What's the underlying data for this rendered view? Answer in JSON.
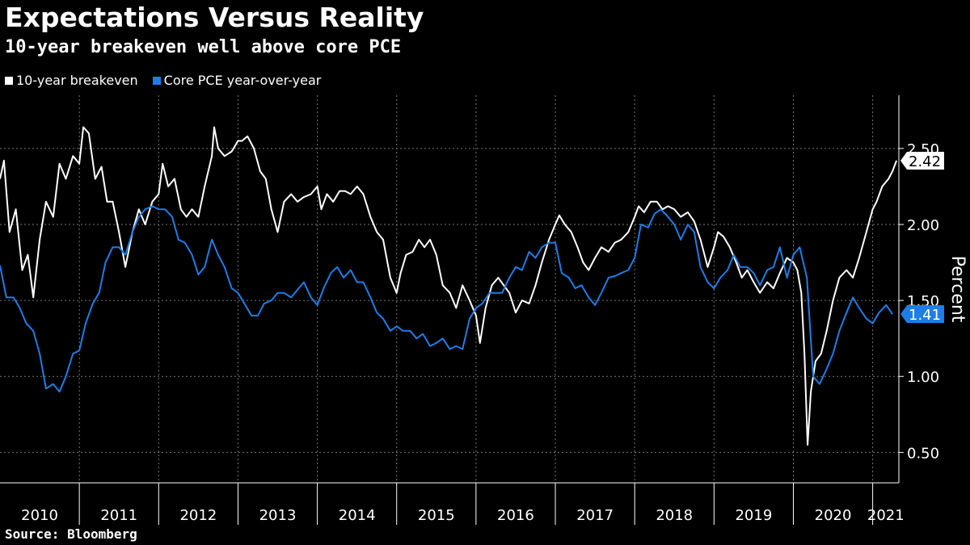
{
  "header": {
    "title": "Expectations Versus Reality",
    "subtitle": "10-year breakeven well above core PCE"
  },
  "footer": {
    "source": "Source: Bloomberg"
  },
  "colors": {
    "breakeven": "#ffffff",
    "pce": "#1f7de6",
    "grid": "#777777",
    "background": "#000000"
  },
  "chart_data": {
    "type": "line",
    "title": "Expectations Versus Reality",
    "subtitle": "10-year breakeven well above core PCE",
    "ylabel": "Percent",
    "ylim": [
      0.3,
      2.85
    ],
    "yticks": [
      0.5,
      1.0,
      1.5,
      2.0,
      2.5
    ],
    "ytick_labels": [
      "0.50",
      "1.00",
      "1.50",
      "2.00",
      "2.50"
    ],
    "xlim": [
      2010.0,
      2021.33
    ],
    "xtick_labels": [
      "2010",
      "2011",
      "2012",
      "2013",
      "2014",
      "2015",
      "2016",
      "2017",
      "2018",
      "2019",
      "2020",
      "2021"
    ],
    "legend_position": "top-left",
    "grid": true,
    "series": [
      {
        "name": "10-year breakeven",
        "color": "#ffffff",
        "last_value_label": "2.42",
        "points": [
          [
            2010.0,
            2.3
          ],
          [
            2010.05,
            2.42
          ],
          [
            2010.12,
            1.95
          ],
          [
            2010.2,
            2.1
          ],
          [
            2010.28,
            1.7
          ],
          [
            2010.35,
            1.8
          ],
          [
            2010.42,
            1.52
          ],
          [
            2010.5,
            1.9
          ],
          [
            2010.58,
            2.15
          ],
          [
            2010.67,
            2.05
          ],
          [
            2010.75,
            2.4
          ],
          [
            2010.83,
            2.3
          ],
          [
            2010.92,
            2.45
          ],
          [
            2011.0,
            2.4
          ],
          [
            2011.05,
            2.64
          ],
          [
            2011.12,
            2.6
          ],
          [
            2011.2,
            2.3
          ],
          [
            2011.28,
            2.38
          ],
          [
            2011.35,
            2.15
          ],
          [
            2011.42,
            2.15
          ],
          [
            2011.5,
            1.95
          ],
          [
            2011.58,
            1.72
          ],
          [
            2011.67,
            1.95
          ],
          [
            2011.75,
            2.1
          ],
          [
            2011.83,
            2.0
          ],
          [
            2011.92,
            2.15
          ],
          [
            2012.0,
            2.2
          ],
          [
            2012.05,
            2.4
          ],
          [
            2012.12,
            2.25
          ],
          [
            2012.2,
            2.3
          ],
          [
            2012.28,
            2.1
          ],
          [
            2012.35,
            2.05
          ],
          [
            2012.42,
            2.1
          ],
          [
            2012.5,
            2.05
          ],
          [
            2012.58,
            2.25
          ],
          [
            2012.67,
            2.45
          ],
          [
            2012.7,
            2.64
          ],
          [
            2012.75,
            2.5
          ],
          [
            2012.83,
            2.45
          ],
          [
            2012.92,
            2.48
          ],
          [
            2013.0,
            2.55
          ],
          [
            2013.05,
            2.55
          ],
          [
            2013.12,
            2.58
          ],
          [
            2013.2,
            2.5
          ],
          [
            2013.28,
            2.35
          ],
          [
            2013.35,
            2.3
          ],
          [
            2013.42,
            2.1
          ],
          [
            2013.5,
            1.95
          ],
          [
            2013.58,
            2.15
          ],
          [
            2013.67,
            2.2
          ],
          [
            2013.75,
            2.15
          ],
          [
            2013.83,
            2.18
          ],
          [
            2013.92,
            2.2
          ],
          [
            2014.0,
            2.25
          ],
          [
            2014.05,
            2.1
          ],
          [
            2014.12,
            2.2
          ],
          [
            2014.2,
            2.15
          ],
          [
            2014.28,
            2.22
          ],
          [
            2014.35,
            2.22
          ],
          [
            2014.42,
            2.2
          ],
          [
            2014.5,
            2.25
          ],
          [
            2014.58,
            2.2
          ],
          [
            2014.67,
            2.05
          ],
          [
            2014.75,
            1.95
          ],
          [
            2014.83,
            1.9
          ],
          [
            2014.92,
            1.65
          ],
          [
            2015.0,
            1.55
          ],
          [
            2015.05,
            1.68
          ],
          [
            2015.12,
            1.8
          ],
          [
            2015.2,
            1.82
          ],
          [
            2015.28,
            1.9
          ],
          [
            2015.35,
            1.85
          ],
          [
            2015.42,
            1.9
          ],
          [
            2015.5,
            1.8
          ],
          [
            2015.58,
            1.6
          ],
          [
            2015.67,
            1.55
          ],
          [
            2015.75,
            1.45
          ],
          [
            2015.83,
            1.6
          ],
          [
            2015.92,
            1.5
          ],
          [
            2016.0,
            1.4
          ],
          [
            2016.05,
            1.22
          ],
          [
            2016.12,
            1.45
          ],
          [
            2016.2,
            1.6
          ],
          [
            2016.28,
            1.65
          ],
          [
            2016.35,
            1.6
          ],
          [
            2016.42,
            1.55
          ],
          [
            2016.5,
            1.42
          ],
          [
            2016.58,
            1.5
          ],
          [
            2016.67,
            1.48
          ],
          [
            2016.75,
            1.6
          ],
          [
            2016.83,
            1.75
          ],
          [
            2016.92,
            1.9
          ],
          [
            2017.0,
            2.0
          ],
          [
            2017.05,
            2.06
          ],
          [
            2017.12,
            2.0
          ],
          [
            2017.2,
            1.95
          ],
          [
            2017.28,
            1.85
          ],
          [
            2017.35,
            1.75
          ],
          [
            2017.42,
            1.7
          ],
          [
            2017.5,
            1.78
          ],
          [
            2017.58,
            1.85
          ],
          [
            2017.67,
            1.82
          ],
          [
            2017.75,
            1.88
          ],
          [
            2017.83,
            1.9
          ],
          [
            2017.92,
            1.95
          ],
          [
            2018.0,
            2.05
          ],
          [
            2018.05,
            2.12
          ],
          [
            2018.12,
            2.08
          ],
          [
            2018.2,
            2.15
          ],
          [
            2018.28,
            2.15
          ],
          [
            2018.35,
            2.1
          ],
          [
            2018.42,
            2.12
          ],
          [
            2018.5,
            2.1
          ],
          [
            2018.58,
            2.05
          ],
          [
            2018.67,
            2.08
          ],
          [
            2018.75,
            2.02
          ],
          [
            2018.83,
            1.9
          ],
          [
            2018.92,
            1.72
          ],
          [
            2019.0,
            1.85
          ],
          [
            2019.05,
            1.95
          ],
          [
            2019.12,
            1.92
          ],
          [
            2019.2,
            1.85
          ],
          [
            2019.28,
            1.75
          ],
          [
            2019.35,
            1.65
          ],
          [
            2019.42,
            1.7
          ],
          [
            2019.5,
            1.62
          ],
          [
            2019.58,
            1.55
          ],
          [
            2019.67,
            1.62
          ],
          [
            2019.75,
            1.58
          ],
          [
            2019.83,
            1.68
          ],
          [
            2019.92,
            1.78
          ],
          [
            2020.0,
            1.75
          ],
          [
            2020.05,
            1.7
          ],
          [
            2020.1,
            1.55
          ],
          [
            2020.14,
            1.15
          ],
          [
            2020.18,
            0.55
          ],
          [
            2020.22,
            0.9
          ],
          [
            2020.28,
            1.1
          ],
          [
            2020.35,
            1.15
          ],
          [
            2020.42,
            1.3
          ],
          [
            2020.5,
            1.5
          ],
          [
            2020.58,
            1.65
          ],
          [
            2020.67,
            1.7
          ],
          [
            2020.75,
            1.65
          ],
          [
            2020.83,
            1.78
          ],
          [
            2020.92,
            1.95
          ],
          [
            2021.0,
            2.1
          ],
          [
            2021.05,
            2.15
          ],
          [
            2021.12,
            2.25
          ],
          [
            2021.2,
            2.3
          ],
          [
            2021.25,
            2.35
          ],
          [
            2021.3,
            2.42
          ]
        ]
      },
      {
        "name": "Core PCE year-over-year",
        "color": "#1f7de6",
        "last_value_label": "1.41",
        "points": [
          [
            2010.0,
            1.73
          ],
          [
            2010.08,
            1.52
          ],
          [
            2010.17,
            1.52
          ],
          [
            2010.25,
            1.45
          ],
          [
            2010.33,
            1.35
          ],
          [
            2010.42,
            1.3
          ],
          [
            2010.5,
            1.15
          ],
          [
            2010.58,
            0.92
          ],
          [
            2010.67,
            0.95
          ],
          [
            2010.75,
            0.9
          ],
          [
            2010.83,
            1.0
          ],
          [
            2010.92,
            1.15
          ],
          [
            2011.0,
            1.17
          ],
          [
            2011.08,
            1.35
          ],
          [
            2011.17,
            1.48
          ],
          [
            2011.25,
            1.55
          ],
          [
            2011.33,
            1.75
          ],
          [
            2011.42,
            1.85
          ],
          [
            2011.5,
            1.85
          ],
          [
            2011.58,
            1.8
          ],
          [
            2011.67,
            1.95
          ],
          [
            2011.75,
            2.05
          ],
          [
            2011.83,
            2.1
          ],
          [
            2011.92,
            2.12
          ],
          [
            2012.0,
            2.1
          ],
          [
            2012.08,
            2.1
          ],
          [
            2012.17,
            2.05
          ],
          [
            2012.25,
            1.9
          ],
          [
            2012.33,
            1.88
          ],
          [
            2012.42,
            1.8
          ],
          [
            2012.5,
            1.67
          ],
          [
            2012.58,
            1.72
          ],
          [
            2012.67,
            1.9
          ],
          [
            2012.75,
            1.8
          ],
          [
            2012.83,
            1.72
          ],
          [
            2012.92,
            1.58
          ],
          [
            2013.0,
            1.55
          ],
          [
            2013.08,
            1.48
          ],
          [
            2013.17,
            1.4
          ],
          [
            2013.25,
            1.4
          ],
          [
            2013.33,
            1.48
          ],
          [
            2013.42,
            1.5
          ],
          [
            2013.5,
            1.55
          ],
          [
            2013.58,
            1.55
          ],
          [
            2013.67,
            1.52
          ],
          [
            2013.75,
            1.57
          ],
          [
            2013.83,
            1.62
          ],
          [
            2013.92,
            1.52
          ],
          [
            2014.0,
            1.47
          ],
          [
            2014.08,
            1.58
          ],
          [
            2014.17,
            1.68
          ],
          [
            2014.25,
            1.72
          ],
          [
            2014.33,
            1.65
          ],
          [
            2014.42,
            1.7
          ],
          [
            2014.5,
            1.62
          ],
          [
            2014.58,
            1.62
          ],
          [
            2014.67,
            1.52
          ],
          [
            2014.75,
            1.42
          ],
          [
            2014.83,
            1.38
          ],
          [
            2014.92,
            1.3
          ],
          [
            2015.0,
            1.33
          ],
          [
            2015.08,
            1.3
          ],
          [
            2015.17,
            1.3
          ],
          [
            2015.25,
            1.25
          ],
          [
            2015.33,
            1.28
          ],
          [
            2015.42,
            1.2
          ],
          [
            2015.5,
            1.22
          ],
          [
            2015.58,
            1.25
          ],
          [
            2015.67,
            1.18
          ],
          [
            2015.75,
            1.2
          ],
          [
            2015.83,
            1.18
          ],
          [
            2015.92,
            1.38
          ],
          [
            2016.0,
            1.45
          ],
          [
            2016.08,
            1.48
          ],
          [
            2016.17,
            1.55
          ],
          [
            2016.25,
            1.55
          ],
          [
            2016.33,
            1.55
          ],
          [
            2016.42,
            1.65
          ],
          [
            2016.5,
            1.72
          ],
          [
            2016.58,
            1.7
          ],
          [
            2016.67,
            1.82
          ],
          [
            2016.75,
            1.78
          ],
          [
            2016.83,
            1.85
          ],
          [
            2016.92,
            1.88
          ],
          [
            2017.0,
            1.88
          ],
          [
            2017.08,
            1.68
          ],
          [
            2017.17,
            1.65
          ],
          [
            2017.25,
            1.58
          ],
          [
            2017.33,
            1.6
          ],
          [
            2017.42,
            1.52
          ],
          [
            2017.5,
            1.47
          ],
          [
            2017.58,
            1.55
          ],
          [
            2017.67,
            1.65
          ],
          [
            2017.75,
            1.66
          ],
          [
            2017.83,
            1.68
          ],
          [
            2017.92,
            1.7
          ],
          [
            2018.0,
            1.78
          ],
          [
            2018.08,
            2.0
          ],
          [
            2018.17,
            1.98
          ],
          [
            2018.25,
            2.07
          ],
          [
            2018.33,
            2.1
          ],
          [
            2018.42,
            2.05
          ],
          [
            2018.5,
            2.0
          ],
          [
            2018.58,
            1.9
          ],
          [
            2018.67,
            2.0
          ],
          [
            2018.75,
            1.95
          ],
          [
            2018.83,
            1.72
          ],
          [
            2018.92,
            1.62
          ],
          [
            2019.0,
            1.58
          ],
          [
            2019.08,
            1.65
          ],
          [
            2019.17,
            1.7
          ],
          [
            2019.25,
            1.8
          ],
          [
            2019.33,
            1.72
          ],
          [
            2019.42,
            1.72
          ],
          [
            2019.5,
            1.68
          ],
          [
            2019.58,
            1.6
          ],
          [
            2019.67,
            1.7
          ],
          [
            2019.75,
            1.72
          ],
          [
            2019.83,
            1.85
          ],
          [
            2019.92,
            1.65
          ],
          [
            2020.0,
            1.8
          ],
          [
            2020.08,
            1.85
          ],
          [
            2020.17,
            1.65
          ],
          [
            2020.25,
            1.0
          ],
          [
            2020.33,
            0.95
          ],
          [
            2020.42,
            1.05
          ],
          [
            2020.5,
            1.15
          ],
          [
            2020.58,
            1.3
          ],
          [
            2020.67,
            1.42
          ],
          [
            2020.75,
            1.52
          ],
          [
            2020.83,
            1.45
          ],
          [
            2020.92,
            1.38
          ],
          [
            2021.0,
            1.35
          ],
          [
            2021.08,
            1.42
          ],
          [
            2021.17,
            1.47
          ],
          [
            2021.25,
            1.41
          ]
        ]
      }
    ]
  }
}
